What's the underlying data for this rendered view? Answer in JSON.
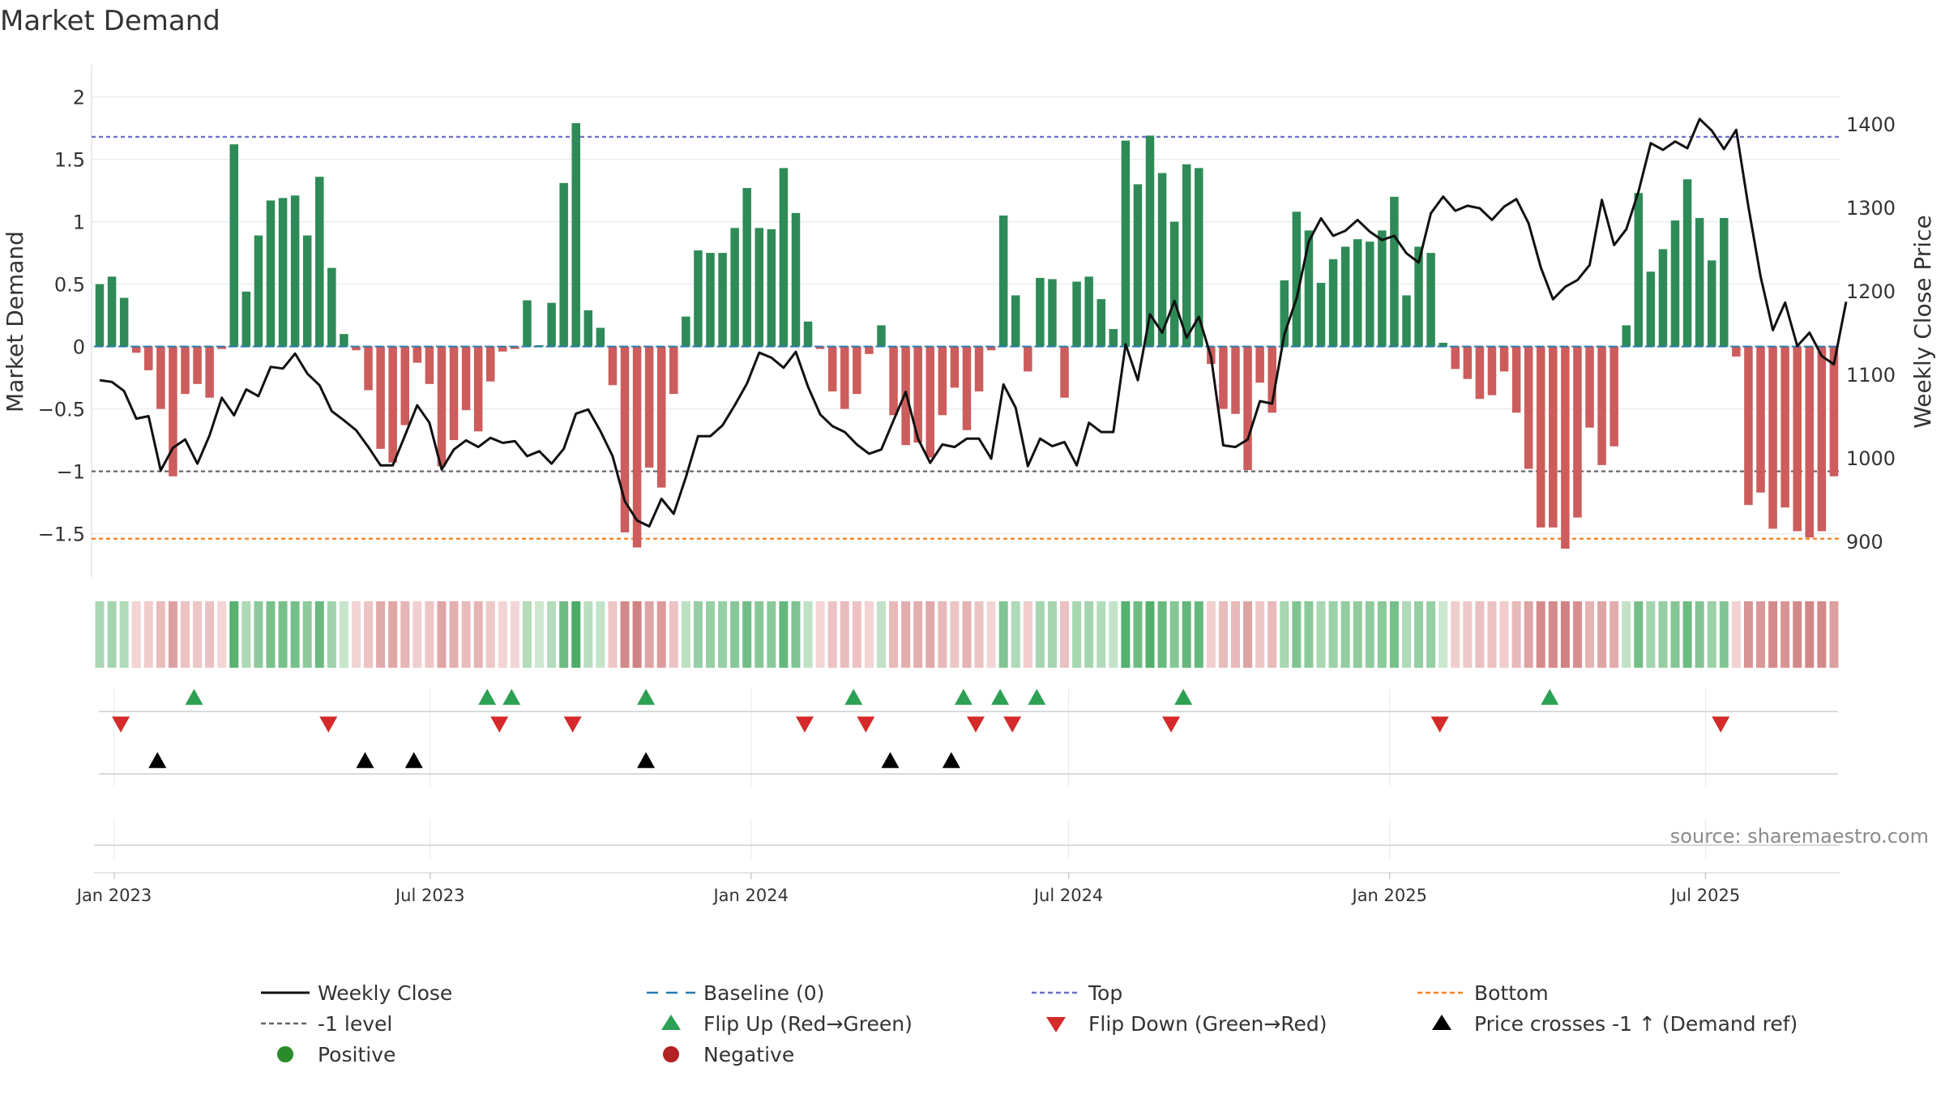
{
  "chart_data": {
    "type": "bar",
    "title": "Market Demand",
    "ylabel": "Market Demand",
    "y2label": "Weekly Close Price",
    "ylim": [
      -1.85,
      2.15
    ],
    "y2lim": [
      860,
      1470
    ],
    "yticks": [
      2,
      1.5,
      1,
      0.5,
      0,
      -0.5,
      -1,
      -1.5
    ],
    "ytick_labels": [
      "2",
      "1.5",
      "1",
      "0.5",
      "0",
      "−0.5",
      "−1",
      "−1.5"
    ],
    "y2ticks": [
      1400,
      1300,
      1200,
      1100,
      1000,
      900
    ],
    "y2tick_labels": [
      "1400",
      "1300",
      "1200",
      "1100",
      "1000",
      "900"
    ],
    "xaxis": {
      "start": "2023-01-02",
      "end": "2025-09-08",
      "unit": "weeks",
      "count": 141
    },
    "xticks": [
      {
        "label": "Jan 2023",
        "week": 0
      },
      {
        "label": "Jul 2023",
        "week": 25.86
      },
      {
        "label": "Jan 2024",
        "week": 52.14
      },
      {
        "label": "Jul 2024",
        "week": 78.14
      },
      {
        "label": "Jan 2025",
        "week": 104.43
      },
      {
        "label": "Jul 2025",
        "week": 130.29
      }
    ],
    "reference_lines": {
      "top": 1.68,
      "bottom": -1.54,
      "minus_one": -1,
      "baseline": 0
    },
    "series": [
      {
        "name": "Market Demand",
        "type": "bar",
        "values": [
          0.5,
          0.56,
          0.39,
          -0.05,
          -0.19,
          -0.5,
          -1.04,
          -0.38,
          -0.3,
          -0.41,
          -0.02,
          1.62,
          0.44,
          0.89,
          1.17,
          1.19,
          1.21,
          0.89,
          1.36,
          0.63,
          0.1,
          -0.03,
          -0.35,
          -0.82,
          -0.93,
          -0.63,
          -0.13,
          -0.3,
          -0.96,
          -0.75,
          -0.51,
          -0.68,
          -0.28,
          -0.04,
          -0.02,
          0.37,
          0.01,
          0.35,
          1.31,
          1.79,
          0.29,
          0.15,
          -0.31,
          -1.49,
          -1.61,
          -0.97,
          -1.13,
          -0.38,
          0.24,
          0.77,
          0.75,
          0.75,
          0.95,
          1.27,
          0.95,
          0.94,
          1.43,
          1.07,
          0.2,
          -0.02,
          -0.36,
          -0.5,
          -0.38,
          -0.06,
          0.17,
          -0.55,
          -0.79,
          -0.77,
          -0.89,
          -0.55,
          -0.33,
          -0.67,
          -0.36,
          -0.03,
          1.05,
          0.41,
          -0.2,
          0.55,
          0.54,
          -0.41,
          0.52,
          0.56,
          0.38,
          0.14,
          1.65,
          1.3,
          1.69,
          1.39,
          1.0,
          1.46,
          1.43,
          -0.14,
          -0.5,
          -0.54,
          -0.99,
          -0.29,
          -0.53,
          0.53,
          1.08,
          0.93,
          0.51,
          0.7,
          0.8,
          0.86,
          0.84,
          0.93,
          1.2,
          0.41,
          0.8,
          0.75,
          0.03,
          -0.18,
          -0.26,
          -0.42,
          -0.39,
          -0.2,
          -0.53,
          -0.98,
          -1.45,
          -1.45,
          -1.62,
          -1.37,
          -0.65,
          -0.95,
          -0.8,
          0.17,
          1.23,
          0.6,
          0.78,
          1.01,
          1.34,
          1.03,
          0.69,
          1.03,
          -0.08,
          -1.27,
          -1.17,
          -1.46,
          -1.29,
          -1.48,
          -1.53,
          -1.48,
          -1.04
        ]
      },
      {
        "name": "Weekly Close",
        "type": "line",
        "axis": "right",
        "values": [
          1093,
          1091,
          1080,
          1047,
          1050,
          985,
          1012,
          1022,
          993,
          1027,
          1072,
          1051,
          1082,
          1074,
          1109,
          1107,
          1125,
          1101,
          1087,
          1056,
          1045,
          1033,
          1013,
          991,
          991,
          1027,
          1063,
          1042,
          986,
          1010,
          1021,
          1013,
          1024,
          1018,
          1020,
          1002,
          1008,
          993,
          1011,
          1053,
          1058,
          1032,
          1002,
          948,
          925,
          918,
          951,
          933,
          977,
          1026,
          1026,
          1039,
          1063,
          1089,
          1126,
          1120,
          1108,
          1127,
          1085,
          1052,
          1038,
          1031,
          1016,
          1005,
          1010,
          1045,
          1079,
          1023,
          994,
          1016,
          1013,
          1023,
          1023,
          999,
          1088,
          1060,
          990,
          1023,
          1014,
          1019,
          991,
          1042,
          1031,
          1031,
          1136,
          1093,
          1172,
          1150,
          1188,
          1144,
          1169,
          1121,
          1015,
          1013,
          1022,
          1068,
          1065,
          1148,
          1191,
          1259,
          1287,
          1266,
          1272,
          1285,
          1271,
          1261,
          1266,
          1245,
          1234,
          1293,
          1313,
          1296,
          1302,
          1299,
          1285,
          1301,
          1310,
          1281,
          1228,
          1190,
          1205,
          1213,
          1231,
          1309,
          1255,
          1274,
          1319,
          1377,
          1369,
          1379,
          1371,
          1406,
          1392,
          1370,
          1393,
          1301,
          1217,
          1153,
          1186,
          1134,
          1150,
          1122,
          1112,
          1187
        ]
      }
    ],
    "heat_strip": {
      "scheme": "green for positive, red for negative, intensity by magnitude"
    },
    "markers": {
      "flip_up_weeks": [
        7,
        31,
        33,
        44,
        61,
        70,
        73,
        76,
        88,
        118
      ],
      "flip_down_weeks": [
        1,
        18,
        32,
        38,
        57,
        62,
        71,
        74,
        87,
        109,
        132
      ],
      "price_cross_weeks": [
        4,
        21,
        25,
        44,
        64,
        69
      ]
    },
    "legend": [
      {
        "label": "Weekly Close",
        "symbol": "line",
        "color": "#111111"
      },
      {
        "label": "Baseline (0)",
        "symbol": "dash",
        "color": "#2a7ab0"
      },
      {
        "label": "Top",
        "symbol": "dot",
        "color": "#6f6fc7"
      },
      {
        "label": "Bottom",
        "symbol": "dot",
        "color": "#f0811f"
      },
      {
        "label": "-1 level",
        "symbol": "dot",
        "color": "#666666"
      },
      {
        "label": "Flip Up (Red→Green)",
        "symbol": "tri-up",
        "color": "#2ca053"
      },
      {
        "label": "Flip Down (Green→Red)",
        "symbol": "tri-down",
        "color": "#d42a2a"
      },
      {
        "label": "Price crosses -1 ↑ (Demand ref)",
        "symbol": "tri-up",
        "color": "#000000"
      },
      {
        "label": "Positive",
        "symbol": "circle",
        "color": "#2a8b2a"
      },
      {
        "label": "Negative",
        "symbol": "circle",
        "color": "#b22222"
      }
    ],
    "source": "source: sharemaestro.com"
  },
  "colors": {
    "positive_bar": "#2e8b57",
    "negative_bar": "#cd5c5c",
    "price_line": "#111111",
    "baseline": "#2a7ab0",
    "top_line": "#6f6fc7",
    "bottom_line": "#f0811f",
    "minus_one_line": "#666666",
    "flip_up": "#2ca053",
    "flip_down": "#d42a2a",
    "cross": "#000000",
    "grid": "#e8ecef"
  }
}
